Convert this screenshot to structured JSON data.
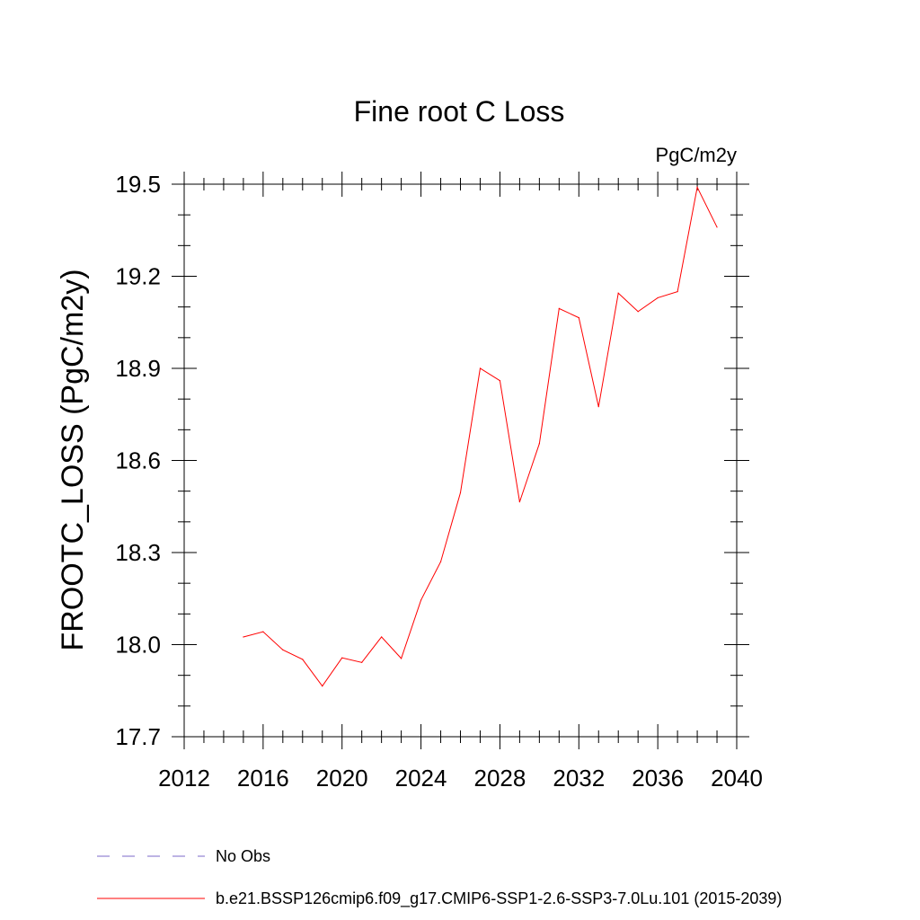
{
  "chart_data": {
    "type": "line",
    "title": "Fine root C Loss",
    "units": "PgC/m2y",
    "xlabel": "",
    "ylabel": "FROOTC_LOSS  (PgC/m2y)",
    "xlim": [
      2012,
      2040
    ],
    "ylim": [
      17.7,
      19.5
    ],
    "x_ticks": [
      2012,
      2016,
      2020,
      2024,
      2028,
      2032,
      2036,
      2040
    ],
    "y_ticks": [
      "17.7",
      "18.0",
      "18.3",
      "18.6",
      "18.9",
      "19.2",
      "19.5"
    ],
    "grid": false,
    "legend_position": "bottom",
    "legend": [
      {
        "label": "No Obs",
        "style": "dashed",
        "color": "#7b68c8"
      },
      {
        "label": "b.e21.BSSP126cmip6.f09_g17.CMIP6-SSP1-2.6-SSP3-7.0Lu.101 (2015-2039)",
        "style": "solid",
        "color": "#ff0000"
      }
    ],
    "series": [
      {
        "name": "b.e21.BSSP126cmip6.f09_g17.CMIP6-SSP1-2.6-SSP3-7.0Lu.101 (2015-2039)",
        "color": "#ff0000",
        "x": [
          2015,
          2016,
          2017,
          2018,
          2019,
          2020,
          2021,
          2022,
          2023,
          2024,
          2025,
          2026,
          2027,
          2028,
          2029,
          2030,
          2031,
          2032,
          2033,
          2034,
          2035,
          2036,
          2037,
          2038,
          2039
        ],
        "y": [
          18.025,
          18.042,
          17.983,
          17.952,
          17.865,
          17.957,
          17.942,
          18.025,
          17.955,
          18.145,
          18.27,
          18.495,
          18.9,
          18.86,
          18.465,
          18.655,
          19.095,
          19.065,
          18.775,
          19.145,
          19.085,
          19.13,
          19.15,
          19.49,
          19.36
        ]
      }
    ]
  }
}
